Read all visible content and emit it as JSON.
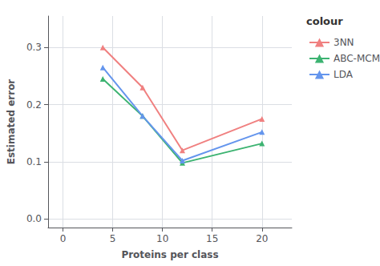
{
  "chart_data": {
    "type": "line",
    "x": [
      4,
      8,
      12,
      20
    ],
    "series": [
      {
        "name": "3NN",
        "color": "#F08080",
        "values": [
          0.3,
          0.23,
          0.12,
          0.175
        ]
      },
      {
        "name": "ABC-MCMC",
        "color": "#3CB371",
        "values": [
          0.245,
          0.18,
          0.098,
          0.132
        ]
      },
      {
        "name": "LDA",
        "color": "#6495ED",
        "values": [
          0.265,
          0.18,
          0.102,
          0.152
        ]
      }
    ],
    "xlabel": "Proteins per class",
    "ylabel": "Estimated error",
    "legend_title": "colour",
    "xlim": [
      -1.5,
      23
    ],
    "ylim": [
      -0.015,
      0.355
    ],
    "xticks": [
      0,
      5,
      10,
      15,
      20
    ],
    "yticks": [
      {
        "value": 0.0,
        "label": "0.0"
      },
      0.1,
      0.2,
      0.3
    ],
    "grid": true,
    "legend": "right",
    "marker": "triangle"
  }
}
